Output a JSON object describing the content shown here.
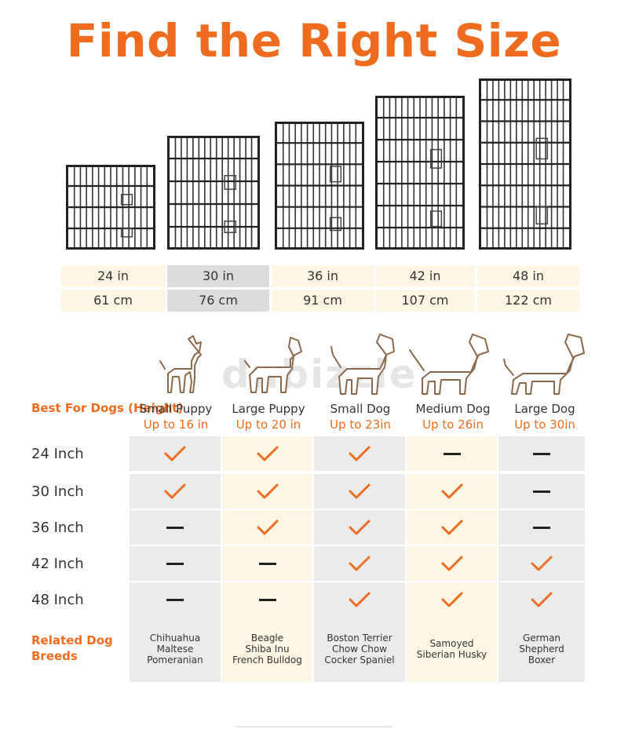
{
  "title": "Find the Right Size",
  "watermark": "dubizzle",
  "sizes": [
    {
      "in": "24 in",
      "cm": "61 cm"
    },
    {
      "in": "30 in",
      "cm": "76 cm"
    },
    {
      "in": "36 in",
      "cm": "91 cm"
    },
    {
      "in": "42 in",
      "cm": "107 cm"
    },
    {
      "in": "48 in",
      "cm": "122 cm"
    }
  ],
  "best_for_label": "Best For Dogs (Height)",
  "dogs": [
    {
      "name": "Small Puppy",
      "height": "Up to 16 in"
    },
    {
      "name": "Large Puppy",
      "height": "Up to 20 in"
    },
    {
      "name": "Small Dog",
      "height": "Up to 23in"
    },
    {
      "name": "Medium Dog",
      "height": "Up to 26in"
    },
    {
      "name": "Large Dog",
      "height": "Up to 30in"
    }
  ],
  "rows": [
    {
      "label": "24 Inch",
      "cells": [
        "check",
        "check",
        "check",
        "dash",
        "dash"
      ]
    },
    {
      "label": "30 Inch",
      "cells": [
        "check",
        "check",
        "check",
        "check",
        "dash"
      ]
    },
    {
      "label": "36 Inch",
      "cells": [
        "dash",
        "check",
        "check",
        "check",
        "dash"
      ]
    },
    {
      "label": "42 Inch",
      "cells": [
        "dash",
        "dash",
        "check",
        "check",
        "check"
      ]
    },
    {
      "label": "48 Inch",
      "cells": [
        "dash",
        "dash",
        "check",
        "check",
        "check"
      ]
    }
  ],
  "related_label": "Related Dog Breeds",
  "breeds": [
    [
      "Chihuahua",
      "Maltese",
      "Pomeranian"
    ],
    [
      "Beagle",
      "Shiba Inu",
      "French Bulldog"
    ],
    [
      "Boston Terrier",
      "Chow Chow",
      "Cocker Spaniel"
    ],
    [
      "Samoyed",
      "Siberian Husky"
    ],
    [
      "German",
      "Shepherd",
      "Boxer"
    ]
  ],
  "colors": {
    "accent": "#ef6c1e",
    "gray": "#ebebeb",
    "cream": "#fdf6e3"
  }
}
